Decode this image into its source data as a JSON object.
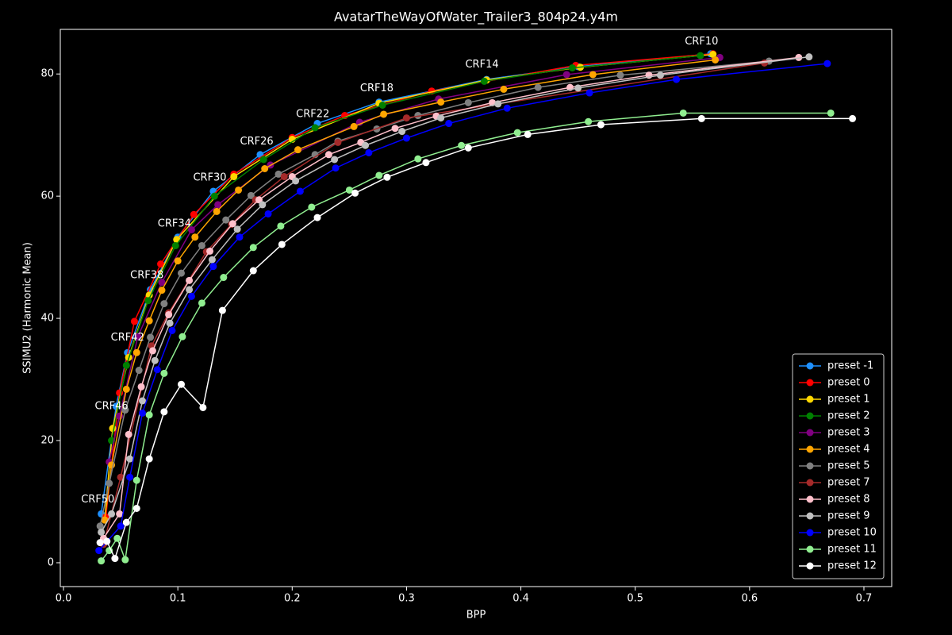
{
  "chart_data": {
    "type": "line",
    "title": "AvatarTheWayOfWater_Trailer3_804p24.y4m",
    "x_label": "BPP",
    "y_label": "SSIMU2 (Harmonic Mean)",
    "xlim": [
      -0.0028,
      0.7243
    ],
    "ylim": [
      -3.9,
      87.3
    ],
    "xticks": [
      {
        "value": 0,
        "label": "0.0"
      },
      0.1,
      0.2,
      0.3,
      0.4,
      0.5,
      0.6,
      0.7
    ],
    "yticks": [
      0,
      20,
      40,
      60,
      80
    ],
    "legend": "lower right",
    "annotations": [
      {
        "text": "CRF10",
        "x": 0.558,
        "y": 85.3
      },
      {
        "text": "CRF14",
        "x": 0.366,
        "y": 81.5
      },
      {
        "text": "CRF18",
        "x": 0.274,
        "y": 77.6
      },
      {
        "text": "CRF22",
        "x": 0.218,
        "y": 73.4
      },
      {
        "text": "CRF26",
        "x": 0.169,
        "y": 68.9
      },
      {
        "text": "CRF30",
        "x": 0.128,
        "y": 63.0
      },
      {
        "text": "CRF34",
        "x": 0.097,
        "y": 55.5
      },
      {
        "text": "CRF38",
        "x": 0.073,
        "y": 47.0
      },
      {
        "text": "CRF42",
        "x": 0.056,
        "y": 36.8
      },
      {
        "text": "CRF46",
        "x": 0.042,
        "y": 25.6
      },
      {
        "text": "CRF50",
        "x": 0.03,
        "y": 10.3
      }
    ],
    "series": [
      {
        "name": "preset -1",
        "color": "#1e90ff",
        "x": [
          0.566,
          0.45,
          0.37,
          0.276,
          0.222,
          0.172,
          0.131,
          0.1,
          0.076,
          0.056,
          0.046,
          0.033
        ],
        "values": [
          83.3,
          81.2,
          79.1,
          75.4,
          71.9,
          66.8,
          60.8,
          53.3,
          44.7,
          34.4,
          25.6,
          8.0
        ]
      },
      {
        "name": "preset 0",
        "color": "#ff0000",
        "x": [
          0.568,
          0.448,
          0.322,
          0.246,
          0.2,
          0.149,
          0.114,
          0.085,
          0.062,
          0.049,
          0.037
        ],
        "values": [
          83.3,
          81.4,
          77.2,
          73.2,
          69.6,
          63.6,
          57.0,
          48.9,
          39.5,
          27.8,
          7.5
        ]
      },
      {
        "name": "preset 1",
        "color": "#ffd700",
        "x": [
          0.568,
          0.452,
          0.37,
          0.276,
          0.2,
          0.149,
          0.099,
          0.075,
          0.057,
          0.043,
          0.036
        ],
        "values": [
          83.2,
          81.1,
          79.0,
          75.2,
          69.3,
          63.2,
          52.9,
          43.8,
          33.6,
          22.0,
          7.0
        ]
      },
      {
        "name": "preset 2",
        "color": "#008000",
        "x": [
          0.557,
          0.445,
          0.368,
          0.279,
          0.22,
          0.175,
          0.132,
          0.098,
          0.074,
          0.055,
          0.042
        ],
        "values": [
          83.0,
          81.0,
          78.8,
          74.9,
          71.2,
          66.0,
          60.0,
          51.9,
          42.9,
          32.3,
          20.0
        ]
      },
      {
        "name": "preset 3",
        "color": "#800080",
        "x": [
          0.574,
          0.44,
          0.328,
          0.259,
          0.181,
          0.135,
          0.112,
          0.086,
          0.065,
          0.049,
          0.04
        ],
        "values": [
          82.7,
          79.9,
          75.9,
          72.1,
          65.1,
          58.6,
          54.5,
          45.9,
          37.0,
          24.0,
          16.5
        ]
      },
      {
        "name": "preset 4",
        "color": "#ffa500",
        "x": [
          0.57,
          0.463,
          0.385,
          0.33,
          0.28,
          0.254,
          0.205,
          0.176,
          0.153,
          0.134,
          0.115,
          0.1,
          0.086,
          0.075,
          0.064,
          0.055,
          0.042,
          0.036
        ],
        "values": [
          82.3,
          79.9,
          77.5,
          75.4,
          73.4,
          71.4,
          67.6,
          64.5,
          61.0,
          57.5,
          53.3,
          49.4,
          44.6,
          39.6,
          34.4,
          28.4,
          16.0,
          7.0
        ]
      },
      {
        "name": "preset 5",
        "color": "#808080",
        "x": [
          0.617,
          0.487,
          0.415,
          0.354,
          0.31,
          0.274,
          0.24,
          0.22,
          0.188,
          0.164,
          0.142,
          0.121,
          0.103,
          0.088,
          0.076,
          0.066,
          0.054,
          0.04,
          0.032
        ],
        "values": [
          82.1,
          79.8,
          77.8,
          75.3,
          73.2,
          71.0,
          69.0,
          66.8,
          63.6,
          60.1,
          56.1,
          51.9,
          47.4,
          42.4,
          36.9,
          31.5,
          25.0,
          13.0,
          6.0
        ]
      },
      {
        "name": "preset 7",
        "color": "#a52a2a",
        "x": [
          0.613,
          0.3,
          0.24,
          0.193,
          0.168,
          0.147,
          0.125,
          0.092,
          0.077,
          0.05,
          0.035
        ],
        "values": [
          81.8,
          72.8,
          68.8,
          63.2,
          59.4,
          55.4,
          50.9,
          40.9,
          35.5,
          14.0,
          3.0
        ]
      },
      {
        "name": "preset 8",
        "color": "#ffc0cb",
        "x": [
          0.643,
          0.512,
          0.443,
          0.375,
          0.326,
          0.29,
          0.26,
          0.232,
          0.2,
          0.171,
          0.148,
          0.128,
          0.11,
          0.092,
          0.078,
          0.068,
          0.057,
          0.049,
          0.035
        ],
        "values": [
          82.7,
          79.8,
          77.8,
          75.3,
          73.1,
          71.1,
          68.8,
          66.8,
          63.2,
          59.4,
          55.5,
          51.0,
          46.2,
          40.6,
          34.7,
          28.8,
          21.0,
          8.0,
          4.0
        ]
      },
      {
        "name": "preset 9",
        "color": "#c0c0c0",
        "x": [
          0.652,
          0.522,
          0.45,
          0.38,
          0.33,
          0.296,
          0.264,
          0.237,
          0.203,
          0.174,
          0.152,
          0.13,
          0.11,
          0.093,
          0.08,
          0.069,
          0.058,
          0.042,
          0.033
        ],
        "values": [
          82.8,
          79.8,
          77.7,
          75.1,
          72.8,
          70.6,
          68.3,
          66.0,
          62.5,
          58.6,
          54.6,
          49.6,
          44.7,
          39.2,
          33.1,
          26.5,
          17.0,
          8.0,
          5.0
        ]
      },
      {
        "name": "preset 10",
        "color": "#0000ff",
        "x": [
          0.668,
          0.536,
          0.46,
          0.388,
          0.337,
          0.3,
          0.267,
          0.238,
          0.207,
          0.179,
          0.154,
          0.131,
          0.112,
          0.095,
          0.082,
          0.069,
          0.058,
          0.05,
          0.031
        ],
        "values": [
          81.7,
          79.1,
          76.9,
          74.4,
          71.9,
          69.5,
          67.1,
          64.6,
          60.8,
          57.1,
          53.3,
          48.5,
          43.6,
          38.0,
          31.6,
          24.5,
          14.0,
          6.0,
          2.0
        ]
      },
      {
        "name": "preset 11",
        "color": "#90ee90",
        "x": [
          0.671,
          0.542,
          0.459,
          0.397,
          0.348,
          0.31,
          0.276,
          0.25,
          0.217,
          0.19,
          0.166,
          0.14,
          0.121,
          0.104,
          0.088,
          0.075,
          0.064,
          0.054,
          0.047,
          0.04,
          0.033
        ],
        "values": [
          73.6,
          73.6,
          72.2,
          70.4,
          68.3,
          66.1,
          63.4,
          61.0,
          58.2,
          55.1,
          51.6,
          46.7,
          42.5,
          37.0,
          31.0,
          24.2,
          13.5,
          0.5,
          4.0,
          2.0,
          0.3
        ]
      },
      {
        "name": "preset 12",
        "color": "#ffffff",
        "x": [
          0.69,
          0.558,
          0.47,
          0.406,
          0.354,
          0.317,
          0.283,
          0.255,
          0.222,
          0.191,
          0.166,
          0.139,
          0.122,
          0.103,
          0.088,
          0.075,
          0.064,
          0.055,
          0.045,
          0.038,
          0.032
        ],
        "values": [
          72.7,
          72.7,
          71.7,
          70.1,
          67.9,
          65.5,
          63.1,
          60.5,
          56.5,
          52.1,
          47.8,
          41.3,
          25.4,
          29.2,
          24.7,
          17.0,
          8.9,
          6.6,
          0.7,
          3.5,
          3.3
        ]
      }
    ]
  }
}
